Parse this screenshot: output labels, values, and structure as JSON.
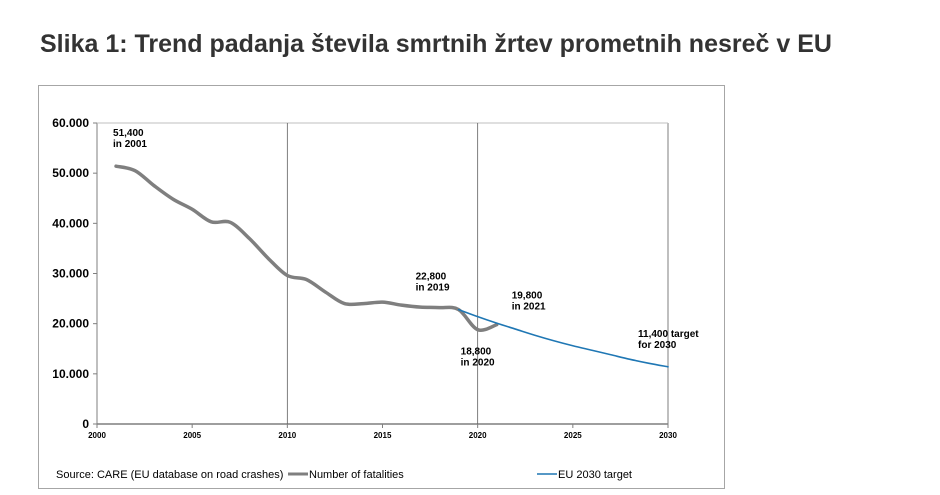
{
  "title": "Slika 1: Trend padanja števila smrtnih žrtev prometnih nesreč v EU",
  "chart_data": {
    "type": "line",
    "title": "",
    "xlabel": "",
    "ylabel": "",
    "xlim": [
      2000,
      2030
    ],
    "ylim": [
      0,
      60000
    ],
    "x_ticks": [
      "2000",
      "2005",
      "2010",
      "2015",
      "2020",
      "2025",
      "2030"
    ],
    "y_ticks": [
      {
        "v": 0,
        "label": "0"
      },
      {
        "v": 10000,
        "label": "10.000"
      },
      {
        "v": 20000,
        "label": "20.000"
      },
      {
        "v": 30000,
        "label": "30.000"
      },
      {
        "v": 40000,
        "label": "40.000"
      },
      {
        "v": 50000,
        "label": "50.000"
      },
      {
        "v": 60000,
        "label": "60.000"
      }
    ],
    "vertical_reference_lines": [
      2010,
      2020
    ],
    "grid": false,
    "legend_placement": "bottom",
    "series": [
      {
        "name": "Number of fatalities",
        "color": "#7f7f7f",
        "x": [
          2001,
          2002,
          2003,
          2004,
          2005,
          2006,
          2007,
          2008,
          2009,
          2010,
          2011,
          2012,
          2013,
          2014,
          2015,
          2016,
          2017,
          2018,
          2019,
          2020,
          2021
        ],
        "y": [
          51400,
          50500,
          47500,
          44800,
          42800,
          40300,
          40200,
          37000,
          33000,
          29600,
          28800,
          26300,
          24000,
          24000,
          24300,
          23700,
          23300,
          23200,
          22800,
          18800,
          19800
        ]
      },
      {
        "name": "EU 2030 target",
        "color": "#1f77b4",
        "x": [
          2019,
          2020,
          2021,
          2022,
          2023,
          2024,
          2025,
          2026,
          2027,
          2028,
          2029,
          2030
        ],
        "y": [
          22800,
          21400,
          20100,
          18900,
          17700,
          16600,
          15600,
          14700,
          13800,
          12900,
          12100,
          11400
        ]
      }
    ],
    "annotations": [
      {
        "lines": [
          "51,400",
          "in 2001"
        ],
        "x": 2001,
        "y": 51400,
        "pos": "above"
      },
      {
        "lines": [
          "22,800",
          "in 2019"
        ],
        "x": 2019,
        "y": 22800,
        "pos": "above"
      },
      {
        "lines": [
          "19,800",
          "in 2021"
        ],
        "x": 2021,
        "y": 19800,
        "pos": "above-right"
      },
      {
        "lines": [
          "18,800",
          "in 2020"
        ],
        "x": 2020,
        "y": 18800,
        "pos": "below"
      },
      {
        "lines": [
          "11,400 target",
          "for 2030"
        ],
        "x": 2030,
        "y": 11400,
        "pos": "above-left"
      }
    ],
    "source": "Source: CARE (EU database on road crashes)"
  }
}
